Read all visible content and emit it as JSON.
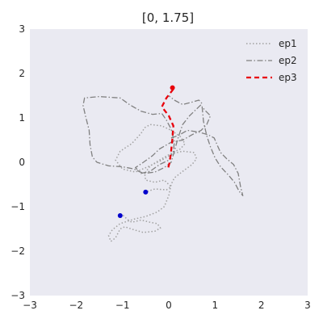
{
  "chart_data": {
    "type": "line",
    "title": "[0, 1.75]",
    "xlabel": "",
    "ylabel": "",
    "xlim": [
      -3,
      3
    ],
    "ylim": [
      -3,
      3
    ],
    "xticks": [
      "−3",
      "−2",
      "−1",
      "0",
      "1",
      "2",
      "3"
    ],
    "yticks": [
      "−3",
      "−2",
      "−1",
      "0",
      "1",
      "2",
      "3"
    ],
    "grid": false,
    "background": "#EAEAF2",
    "legend_position": "upper right",
    "series": [
      {
        "name": "ep1",
        "style": "dotted",
        "color": "#A0A0A0",
        "points": [
          [
            -1.05,
            -1.2
          ],
          [
            -1.0,
            -1.18
          ],
          [
            -0.9,
            -1.28
          ],
          [
            -0.8,
            -1.35
          ],
          [
            -0.6,
            -1.3
          ],
          [
            -0.4,
            -1.35
          ],
          [
            -0.25,
            -1.38
          ],
          [
            -0.18,
            -1.48
          ],
          [
            -0.3,
            -1.55
          ],
          [
            -0.55,
            -1.58
          ],
          [
            -0.75,
            -1.52
          ],
          [
            -0.95,
            -1.45
          ],
          [
            -1.05,
            -1.5
          ],
          [
            -1.15,
            -1.7
          ],
          [
            -1.25,
            -1.78
          ],
          [
            -1.3,
            -1.65
          ],
          [
            -1.22,
            -1.52
          ],
          [
            -1.05,
            -1.38
          ],
          [
            -0.75,
            -1.28
          ],
          [
            -0.5,
            -1.22
          ],
          [
            -0.25,
            -1.12
          ],
          [
            -0.1,
            -1.0
          ],
          [
            0.0,
            -0.75
          ],
          [
            0.05,
            -0.5
          ],
          [
            0.12,
            -0.35
          ],
          [
            0.28,
            -0.22
          ],
          [
            0.5,
            -0.05
          ],
          [
            0.6,
            0.08
          ],
          [
            0.55,
            0.22
          ],
          [
            0.3,
            0.25
          ],
          [
            0.1,
            0.2
          ],
          [
            -0.15,
            0.05
          ],
          [
            -0.45,
            -0.1
          ],
          [
            -0.72,
            -0.22
          ],
          [
            -1.0,
            -0.15
          ],
          [
            -1.15,
            0.05
          ],
          [
            -1.05,
            0.25
          ],
          [
            -0.8,
            0.42
          ],
          [
            -0.6,
            0.65
          ],
          [
            -0.52,
            0.78
          ],
          [
            -0.4,
            0.85
          ],
          [
            -0.15,
            0.82
          ],
          [
            0.05,
            0.72
          ],
          [
            0.25,
            0.58
          ],
          [
            0.35,
            0.42
          ],
          [
            0.25,
            0.3
          ],
          [
            0.05,
            0.2
          ],
          [
            -0.2,
            0.05
          ],
          [
            -0.4,
            -0.08
          ],
          [
            -0.52,
            -0.25
          ],
          [
            -0.5,
            -0.4
          ],
          [
            -0.3,
            -0.45
          ],
          [
            -0.1,
            -0.4
          ],
          [
            0.05,
            -0.55
          ],
          [
            -0.05,
            -0.62
          ],
          [
            -0.3,
            -0.6
          ],
          [
            -0.5,
            -0.67
          ]
        ]
      },
      {
        "name": "ep2",
        "style": "dashdot",
        "color": "#808080",
        "points": [
          [
            0.05,
            0.55
          ],
          [
            0.2,
            0.6
          ],
          [
            0.4,
            0.72
          ],
          [
            0.65,
            0.68
          ],
          [
            0.85,
            0.62
          ],
          [
            0.98,
            0.55
          ],
          [
            1.05,
            0.38
          ],
          [
            1.12,
            0.22
          ],
          [
            1.25,
            0.08
          ],
          [
            1.4,
            -0.05
          ],
          [
            1.5,
            -0.25
          ],
          [
            1.55,
            -0.55
          ],
          [
            1.6,
            -0.75
          ],
          [
            1.52,
            -0.65
          ],
          [
            1.42,
            -0.45
          ],
          [
            1.3,
            -0.3
          ],
          [
            1.12,
            -0.1
          ],
          [
            1.0,
            0.1
          ],
          [
            0.9,
            0.35
          ],
          [
            0.82,
            0.6
          ],
          [
            0.75,
            0.92
          ],
          [
            0.72,
            1.25
          ],
          [
            0.8,
            1.15
          ],
          [
            0.9,
            1.05
          ],
          [
            0.82,
            0.85
          ],
          [
            0.7,
            0.72
          ],
          [
            0.5,
            0.62
          ],
          [
            0.3,
            0.5
          ],
          [
            0.05,
            0.45
          ],
          [
            -0.2,
            0.3
          ],
          [
            -0.35,
            0.15
          ],
          [
            -0.55,
            0.0
          ],
          [
            -0.72,
            -0.12
          ],
          [
            -0.6,
            -0.25
          ],
          [
            -0.4,
            -0.2
          ],
          [
            -0.2,
            -0.05
          ],
          [
            0.0,
            0.05
          ],
          [
            0.1,
            0.25
          ],
          [
            0.12,
            0.45
          ],
          [
            0.05,
            0.75
          ],
          [
            -0.05,
            0.95
          ],
          [
            -0.15,
            1.1
          ],
          [
            -0.35,
            1.08
          ],
          [
            -0.6,
            1.15
          ],
          [
            -0.85,
            1.3
          ],
          [
            -1.05,
            1.45
          ],
          [
            -1.5,
            1.48
          ],
          [
            -1.82,
            1.45
          ],
          [
            -1.85,
            1.28
          ],
          [
            -1.8,
            1.05
          ],
          [
            -1.72,
            0.72
          ],
          [
            -1.7,
            0.4
          ],
          [
            -1.65,
            0.12
          ],
          [
            -1.55,
            0.0
          ],
          [
            -1.3,
            -0.08
          ],
          [
            -1.0,
            -0.1
          ],
          [
            -0.75,
            -0.15
          ],
          [
            -0.55,
            -0.25
          ],
          [
            -0.3,
            -0.22
          ],
          [
            -0.1,
            -0.12
          ],
          [
            0.05,
            0.0
          ],
          [
            0.12,
            0.25
          ],
          [
            0.2,
            0.55
          ],
          [
            0.3,
            0.85
          ],
          [
            0.45,
            1.05
          ],
          [
            0.6,
            1.2
          ],
          [
            0.72,
            1.32
          ],
          [
            0.65,
            1.4
          ],
          [
            0.48,
            1.35
          ],
          [
            0.3,
            1.3
          ],
          [
            0.12,
            1.4
          ],
          [
            0.0,
            1.5
          ]
        ]
      },
      {
        "name": "ep3",
        "style": "dashed",
        "color": "#E8000B",
        "points": [
          [
            0.1,
            1.65
          ],
          [
            -0.05,
            1.45
          ],
          [
            -0.15,
            1.25
          ],
          [
            0.0,
            1.05
          ],
          [
            0.1,
            0.82
          ],
          [
            0.08,
            0.55
          ],
          [
            0.05,
            0.25
          ],
          [
            0.02,
            0.0
          ],
          [
            -0.02,
            -0.15
          ]
        ]
      }
    ],
    "markers": [
      {
        "x": 0.08,
        "y": 1.68,
        "color": "#E8000B"
      },
      {
        "x": -0.5,
        "y": -0.67,
        "color": "#0000CC"
      },
      {
        "x": -1.05,
        "y": -1.2,
        "color": "#0000CC"
      }
    ]
  }
}
